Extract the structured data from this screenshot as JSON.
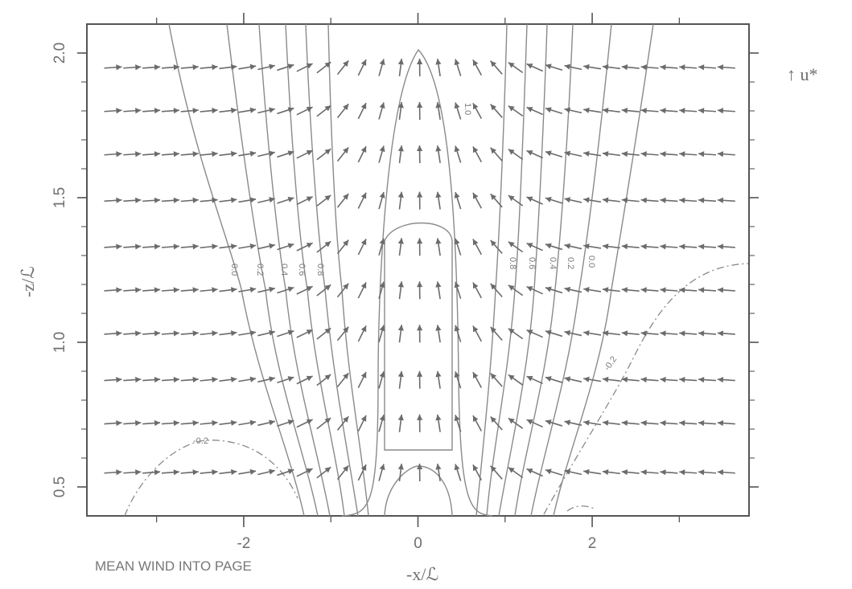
{
  "chart_data": {
    "type": "vector-field-with-contours",
    "xlabel": "-x/ℒ",
    "ylabel": "-z/ℒ",
    "xlim": [
      -3.8,
      3.8
    ],
    "ylim": [
      0.4,
      2.1
    ],
    "xticks": [
      -2,
      0,
      2
    ],
    "xtick_labels": [
      "-2",
      "0",
      "2"
    ],
    "yticks": [
      0.5,
      1.0,
      1.5,
      2.0
    ],
    "ytick_labels": [
      "0.5",
      "1.0",
      "1.5",
      "2.0"
    ],
    "annotation": "MEAN WIND INTO PAGE",
    "reference_vector_label": "↑ u*",
    "vector_grid": {
      "x_start": -3.5,
      "x_step": 0.22,
      "x_count": 33,
      "y_values": [
        0.55,
        0.72,
        0.87,
        1.03,
        1.18,
        1.33,
        1.49,
        1.65,
        1.8,
        1.95
      ]
    },
    "contour_labels": [
      "-0.2",
      "-0.2",
      "0.2",
      "0.4",
      "0.6",
      "0.8",
      "1.0",
      "0.8",
      "0.6",
      "0.4",
      "0.2",
      "0.0",
      "0.0"
    ],
    "colors": {
      "ink": "#7a7a7a",
      "arrow": "#6b6b6b",
      "frame": "#555555"
    }
  }
}
